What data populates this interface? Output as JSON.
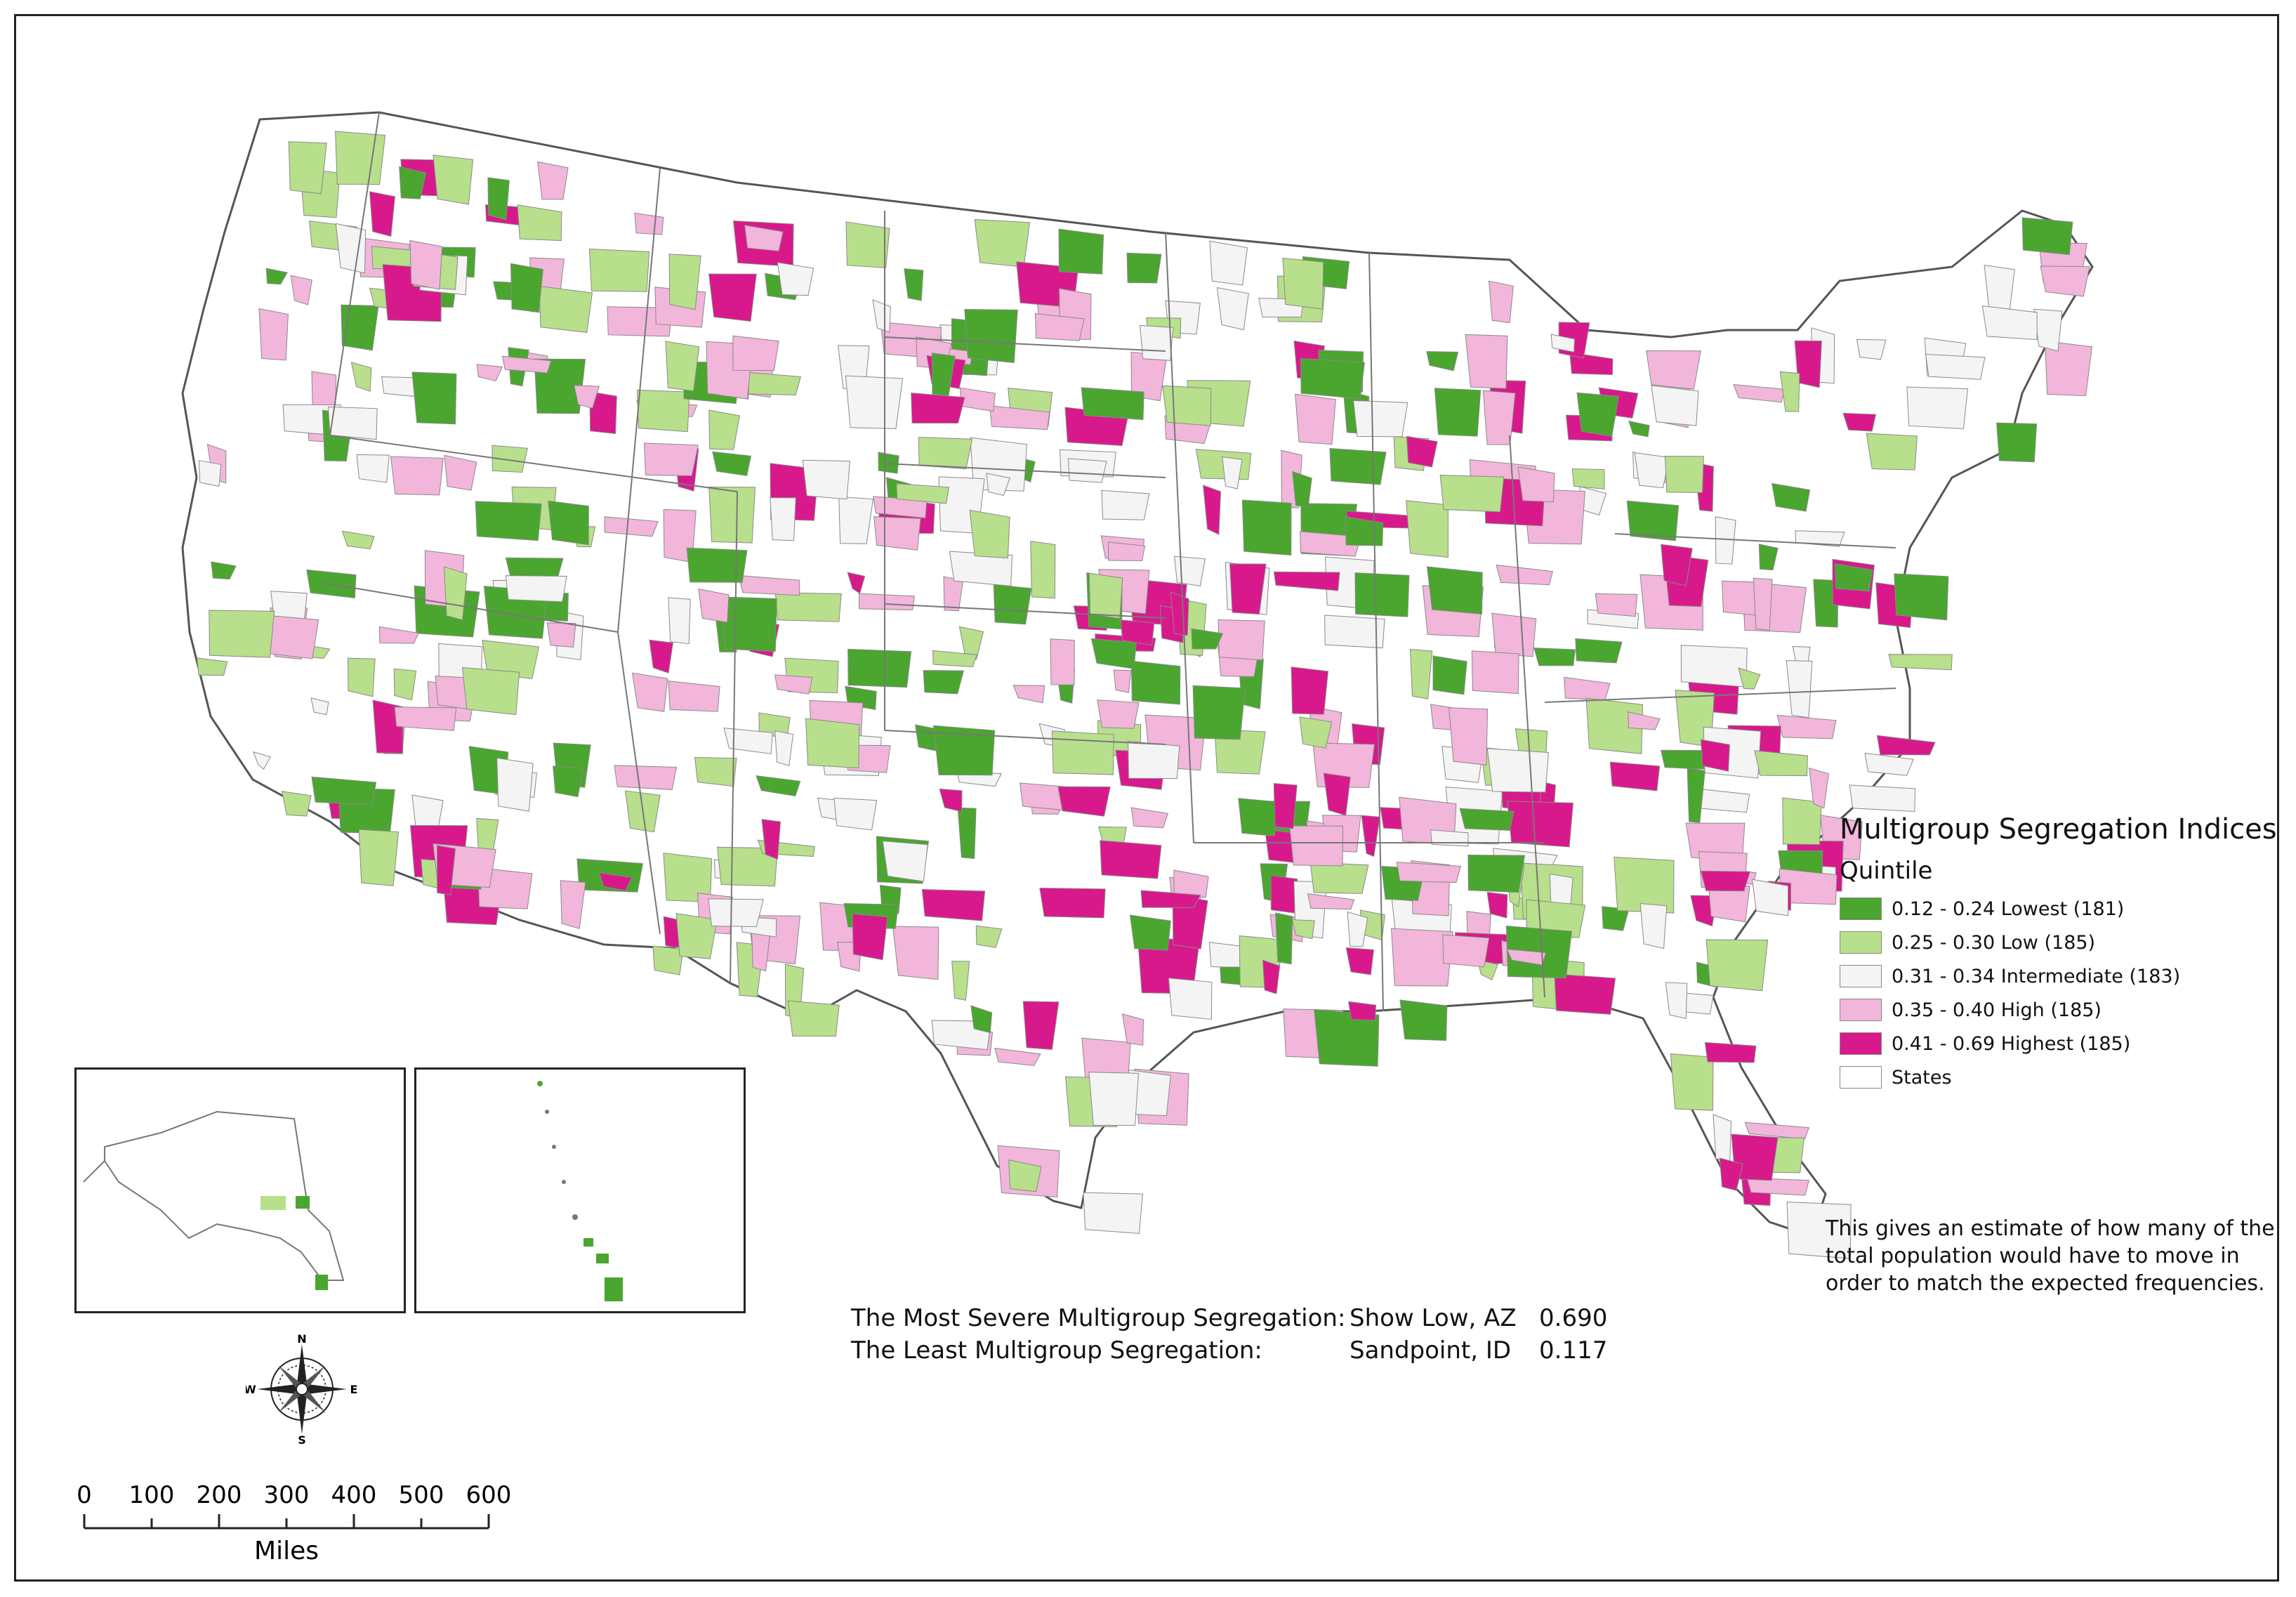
{
  "legend": {
    "title": "Multigroup Segregation Indices",
    "subtitle": "Quintile",
    "items": [
      {
        "label": "0.12 - 0.24 Lowest (181)",
        "color": "#4aa62e"
      },
      {
        "label": "0.25 - 0.30 Low (185)",
        "color": "#b8df8b"
      },
      {
        "label": "0.31 - 0.34 Intermediate (183)",
        "color": "#f4f4f4"
      },
      {
        "label": "0.35 - 0.40 High (185)",
        "color": "#f2b6da"
      },
      {
        "label": "0.41 - 0.69 Highest (185)",
        "color": "#d8198c"
      },
      {
        "label": "States",
        "color": "#ffffff"
      }
    ]
  },
  "note": "This gives an estimate of how  many of the total population would have to move in order to match the expected frequencies.",
  "stats": [
    {
      "label": "The Most Severe Multigroup Segregation:",
      "place": "Show Low, AZ",
      "value": "0.690"
    },
    {
      "label": "The Least Multigroup Segregation:",
      "place": "Sandpoint, ID",
      "value": "0.117"
    }
  ],
  "compass": {
    "n": "N",
    "s": "S",
    "e": "E",
    "w": "W"
  },
  "scale": {
    "ticks": [
      "0",
      "100",
      "200",
      "300",
      "400",
      "500",
      "600"
    ],
    "unit": "Miles"
  },
  "colors": {
    "border": "#222222",
    "state_line": "#555555"
  }
}
